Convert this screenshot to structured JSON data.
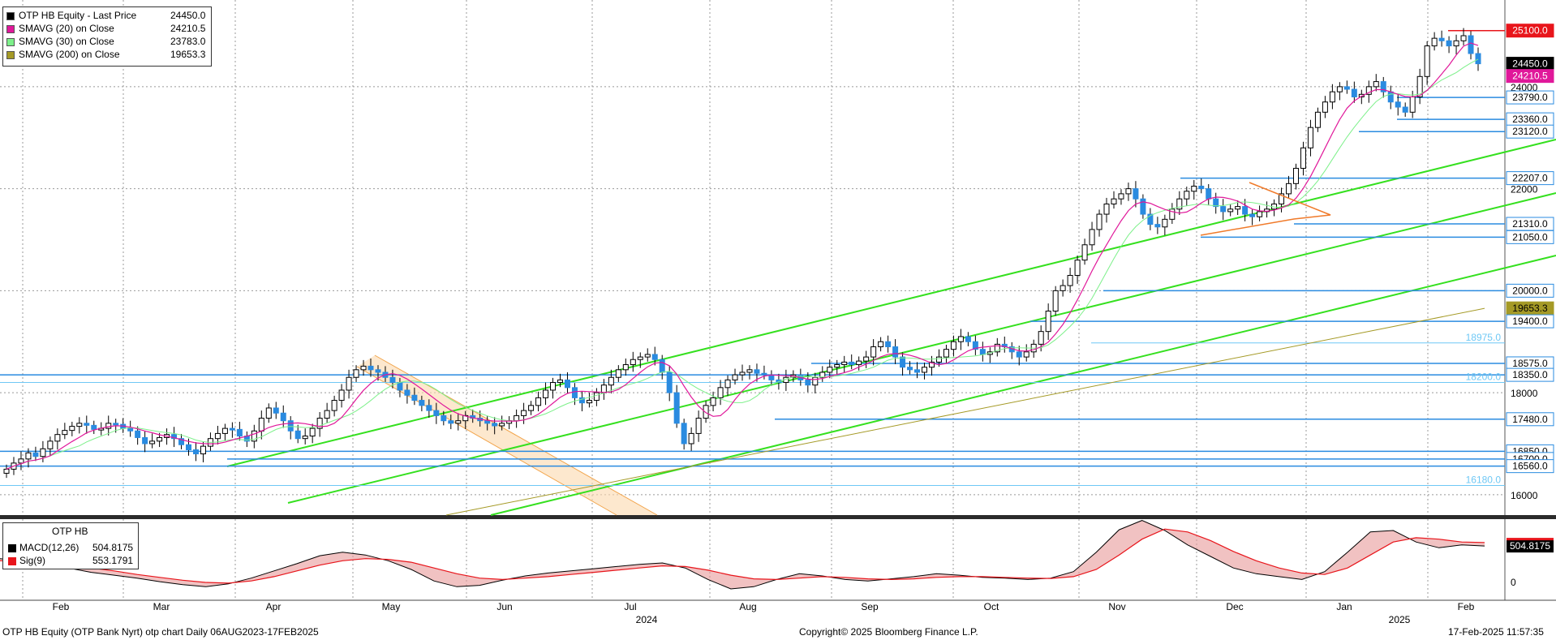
{
  "chart_data": {
    "type": "line",
    "title": "OTP HB Equity (OTP Bank Nyrt) otp chart  Daily 06AUG2023-17FEB2025",
    "x_labels": [
      "Feb",
      "Mar",
      "Apr",
      "May",
      "Jun",
      "Jul",
      "Aug",
      "Sep",
      "Oct",
      "Nov",
      "Dec",
      "Jan",
      "Feb"
    ],
    "year_labels": [
      "2024",
      "2025"
    ],
    "y_ticks": [
      16000,
      18000,
      20000,
      22000,
      24000
    ],
    "ylim": [
      15600,
      25700
    ],
    "macd_ticks": [
      0
    ],
    "price_series": [
      {
        "name": "OTP HB Equity - Last Price",
        "last": "24450.0",
        "color": "#000000"
      },
      {
        "name": "SMAVG (20)  on Close",
        "last": "24210.5",
        "color": "#e0189a"
      },
      {
        "name": "SMAVG (30)  on Close",
        "last": "23783.0",
        "color": "#7df08a"
      },
      {
        "name": "SMAVG (200)  on Close",
        "last": "19653.3",
        "color": "#a59a26"
      }
    ],
    "close": [
      16500,
      16620,
      16700,
      16820,
      16750,
      16900,
      17050,
      17180,
      17260,
      17340,
      17400,
      17360,
      17280,
      17300,
      17400,
      17380,
      17300,
      17250,
      17120,
      17000,
      17050,
      17120,
      17180,
      17100,
      16980,
      16880,
      16800,
      16950,
      17100,
      17200,
      17300,
      17280,
      17150,
      17050,
      17250,
      17500,
      17700,
      17600,
      17450,
      17250,
      17100,
      17150,
      17300,
      17500,
      17650,
      17850,
      18050,
      18300,
      18450,
      18520,
      18450,
      18400,
      18300,
      18200,
      18050,
      17950,
      17850,
      17750,
      17650,
      17550,
      17450,
      17400,
      17450,
      17550,
      17500,
      17450,
      17400,
      17350,
      17400,
      17450,
      17550,
      17650,
      17750,
      17900,
      18050,
      18200,
      18250,
      18100,
      17900,
      17800,
      17850,
      18000,
      18150,
      18300,
      18450,
      18550,
      18650,
      18700,
      18750,
      18650,
      18400,
      18000,
      17400,
      17000,
      17200,
      17500,
      17750,
      17900,
      18100,
      18250,
      18350,
      18400,
      18450,
      18380,
      18350,
      18250,
      18200,
      18300,
      18350,
      18250,
      18150,
      18300,
      18400,
      18500,
      18550,
      18600,
      18550,
      18620,
      18700,
      18900,
      19000,
      18900,
      18700,
      18500,
      18450,
      18400,
      18500,
      18600,
      18700,
      18850,
      19000,
      19100,
      19000,
      18850,
      18750,
      18800,
      18950,
      18900,
      18800,
      18700,
      18800,
      18950,
      19200,
      19600,
      20000,
      20100,
      20300,
      20600,
      20900,
      21200,
      21500,
      21700,
      21800,
      21900,
      22000,
      21800,
      21500,
      21300,
      21250,
      21400,
      21600,
      21800,
      21950,
      22050,
      22000,
      21800,
      21650,
      21550,
      21600,
      21650,
      21500,
      21450,
      21550,
      21600,
      21700,
      21900,
      22100,
      22400,
      22800,
      23200,
      23500,
      23700,
      23900,
      24000,
      23950,
      23800,
      23850,
      24000,
      24100,
      23900,
      23700,
      23600,
      23500,
      23800,
      24200,
      24800,
      24950,
      24900,
      24800,
      24900,
      25000,
      24650,
      24450
    ],
    "sma20_last": 24210.5,
    "sma30_last": 23783.0,
    "sma200_last": 19653.3,
    "levels": [
      {
        "value": "25100.0",
        "color": "#e8151b",
        "label_bg": "#e8151b"
      },
      {
        "value": "24450.0",
        "color": "#000000",
        "label_bg": "#000000"
      },
      {
        "value": "24210.5",
        "color": "#e0189a",
        "label_bg": "#e0189a"
      },
      {
        "value": "23790.0",
        "color": "#2a8be0",
        "label_bg": "#ffffff"
      },
      {
        "value": "23360.0",
        "color": "#2a8be0",
        "label_bg": "#ffffff"
      },
      {
        "value": "23120.0",
        "color": "#2a8be0",
        "label_bg": "#ffffff"
      },
      {
        "value": "22207.0",
        "color": "#2a8be0",
        "label_bg": "#ffffff"
      },
      {
        "value": "21310.0",
        "color": "#2a8be0",
        "label_bg": "#ffffff"
      },
      {
        "value": "21050.0",
        "color": "#2a8be0",
        "label_bg": "#ffffff"
      },
      {
        "value": "20000.0",
        "color": "#2a8be0",
        "label_bg": "#ffffff"
      },
      {
        "value": "19653.3",
        "color": "#a59a26",
        "label_bg": "#a59a26"
      },
      {
        "value": "19400.0",
        "color": "#2a8be0",
        "label_bg": "#ffffff"
      },
      {
        "value": "18975.0",
        "color": "#6fc8f5",
        "label_bg": "none"
      },
      {
        "value": "18575.0",
        "color": "#2a8be0",
        "label_bg": "#ffffff"
      },
      {
        "value": "18350.0",
        "color": "#2a8be0",
        "label_bg": "#ffffff"
      },
      {
        "value": "18200.0",
        "color": "#6fc8f5",
        "label_bg": "none"
      },
      {
        "value": "17480.0",
        "color": "#2a8be0",
        "label_bg": "#ffffff"
      },
      {
        "value": "16850.0",
        "color": "#2a8be0",
        "label_bg": "#ffffff"
      },
      {
        "value": "16700.0",
        "color": "#2a8be0",
        "label_bg": "#ffffff"
      },
      {
        "value": "16560.0",
        "color": "#2a8be0",
        "label_bg": "#ffffff"
      },
      {
        "value": "16180.0",
        "color": "#6fc8f5",
        "label_bg": "none"
      }
    ],
    "macd": {
      "macd_label": "MACD(12,26)",
      "macd_value": "504.8175",
      "sig_label": "Sig(9)",
      "sig_value": "553.1791",
      "last_tag": "504.8175",
      "macd_series": [
        330,
        300,
        260,
        200,
        140,
        100,
        60,
        10,
        -30,
        -60,
        -20,
        60,
        160,
        260,
        370,
        420,
        380,
        300,
        180,
        20,
        -60,
        -40,
        30,
        90,
        130,
        160,
        190,
        220,
        250,
        270,
        200,
        40,
        -90,
        -60,
        40,
        120,
        90,
        40,
        20,
        50,
        80,
        120,
        100,
        70,
        60,
        40,
        60,
        150,
        420,
        730,
        860,
        720,
        520,
        360,
        200,
        120,
        80,
        40,
        150,
        420,
        700,
        720,
        560,
        480,
        520,
        505
      ],
      "sig_series": [
        300,
        290,
        270,
        240,
        200,
        160,
        110,
        70,
        30,
        0,
        -10,
        20,
        80,
        160,
        240,
        300,
        330,
        320,
        280,
        200,
        120,
        60,
        40,
        60,
        80,
        110,
        140,
        170,
        200,
        230,
        220,
        170,
        100,
        50,
        40,
        60,
        80,
        70,
        50,
        40,
        50,
        70,
        80,
        80,
        70,
        60,
        55,
        80,
        180,
        380,
        600,
        740,
        700,
        580,
        430,
        300,
        200,
        130,
        110,
        200,
        380,
        560,
        620,
        600,
        560,
        553
      ]
    }
  },
  "legend": {
    "rows": [
      {
        "label": "OTP HB Equity - Last Price",
        "value": "24450.0",
        "color": "#000000"
      },
      {
        "label": "SMAVG (20)  on Close",
        "value": "24210.5",
        "color": "#e0189a"
      },
      {
        "label": "SMAVG (30)  on Close",
        "value": "23783.0",
        "color": "#7df08a"
      },
      {
        "label": "SMAVG (200)  on Close",
        "value": "19653.3",
        "color": "#a59a26"
      }
    ]
  },
  "macd_panel": {
    "header": "OTP HB",
    "rows": [
      {
        "label": "MACD(12,26)",
        "value": "504.8175",
        "color": "#000000"
      },
      {
        "label": "Sig(9)",
        "value": "553.1791",
        "color": "#e8151b"
      }
    ]
  },
  "footer": {
    "left": "OTP HB Equity (OTP Bank Nyrt) otp chart  Daily 06AUG2023-17FEB2025",
    "center": "Copyright© 2025 Bloomberg Finance L.P.",
    "right": "17-Feb-2025 11:57:35"
  }
}
